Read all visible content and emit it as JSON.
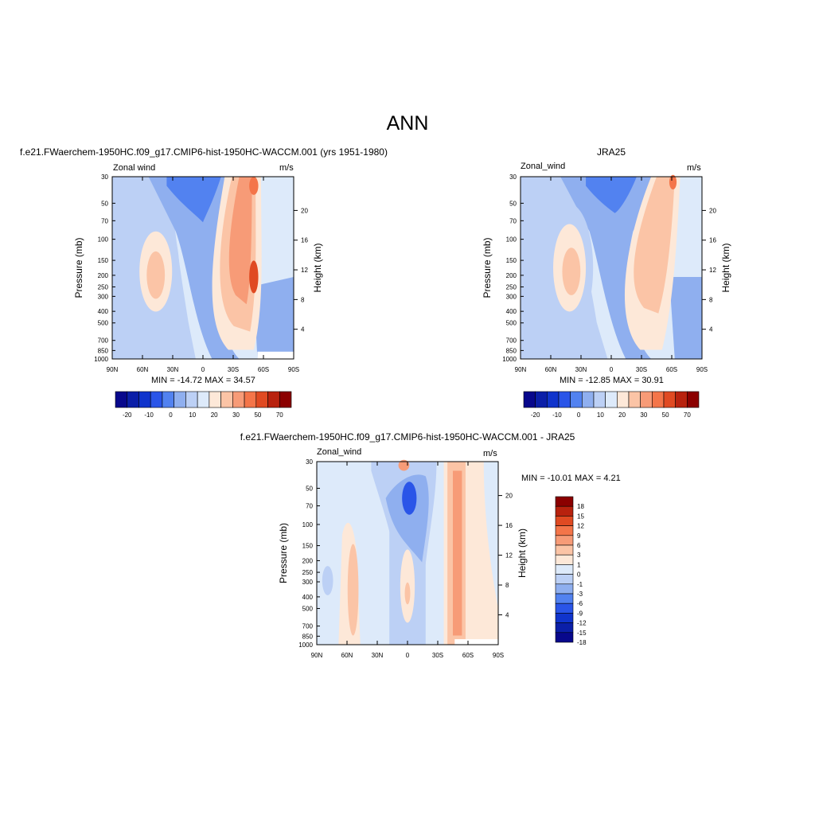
{
  "main_title": "ANN",
  "colors": {
    "div13": [
      "#08088c",
      "#0b1fa8",
      "#1034cc",
      "#2a55e8",
      "#5282f0",
      "#8fafef",
      "#bcd0f5",
      "#ddeafa",
      "#fde8d8",
      "#fbc4a6",
      "#f79b77",
      "#f47549",
      "#e04a22",
      "#b8220e",
      "#8b0000"
    ],
    "div18": [
      "#08088c",
      "#0b1fa8",
      "#1034cc",
      "#2a55e8",
      "#5282f0",
      "#8fafef",
      "#bcd0f5",
      "#ddeafa",
      "#fde8d8",
      "#fbc4a6",
      "#f79b77",
      "#f47549",
      "#e04a22",
      "#b8220e",
      "#8b0000"
    ]
  },
  "chart_data": [
    {
      "type": "heatmap",
      "title": "f.e21.FWaerchem-1950HC.f09_g17.CMIP6-hist-1950HC-WACCM.001 (yrs 1951-1980)",
      "left_string": "Zonal wind",
      "right_string": "m/s",
      "xlabel": "",
      "ylabel": "Pressure (mb)",
      "ylabel_right": "Height (km)",
      "x_ticks": [
        "90N",
        "60N",
        "30N",
        "0",
        "30S",
        "60S",
        "90S"
      ],
      "y_ticks": [
        "30",
        "50",
        "70",
        "100",
        "150",
        "200",
        "250",
        "300",
        "400",
        "500",
        "700",
        "850",
        "1000"
      ],
      "y_ticks_right": [
        "20",
        "16",
        "12",
        "8",
        "4"
      ],
      "stats": "MIN = -14.72  MAX =  34.57",
      "colorbar_labels": [
        "-20",
        "-10",
        "0",
        "10",
        "20",
        "30",
        "50",
        "70"
      ],
      "min": -14.72,
      "max": 34.57
    },
    {
      "type": "heatmap",
      "title": "JRA25",
      "left_string": "Zonal_wind",
      "right_string": "m/s",
      "xlabel": "",
      "ylabel": "Pressure (mb)",
      "ylabel_right": "Height (km)",
      "x_ticks": [
        "90N",
        "60N",
        "30N",
        "0",
        "30S",
        "60S",
        "90S"
      ],
      "y_ticks": [
        "30",
        "50",
        "70",
        "100",
        "150",
        "200",
        "250",
        "300",
        "400",
        "500",
        "700",
        "850",
        "1000"
      ],
      "y_ticks_right": [
        "20",
        "16",
        "12",
        "8",
        "4"
      ],
      "stats": "MIN = -12.85  MAX =  30.91",
      "colorbar_labels": [
        "-20",
        "-10",
        "0",
        "10",
        "20",
        "30",
        "50",
        "70"
      ],
      "min": -12.85,
      "max": 30.91
    },
    {
      "type": "heatmap",
      "title": "f.e21.FWaerchem-1950HC.f09_g17.CMIP6-hist-1950HC-WACCM.001 - JRA25",
      "left_string": "Zonal_wind",
      "right_string": "m/s",
      "xlabel": "",
      "ylabel": "Pressure (mb)",
      "ylabel_right": "Height (km)",
      "x_ticks": [
        "90N",
        "60N",
        "30N",
        "0",
        "30S",
        "60S",
        "90S"
      ],
      "y_ticks": [
        "30",
        "50",
        "70",
        "100",
        "150",
        "200",
        "250",
        "300",
        "400",
        "500",
        "700",
        "850",
        "1000"
      ],
      "y_ticks_right": [
        "20",
        "16",
        "12",
        "8",
        "4"
      ],
      "stats": "MIN = -10.01  MAX =   4.21",
      "colorbar_labels": [
        "18",
        "15",
        "12",
        "9",
        "6",
        "3",
        "1",
        "0",
        "-1",
        "-3",
        "-6",
        "-9",
        "-12",
        "-15",
        "-18"
      ],
      "min": -10.01,
      "max": 4.21
    }
  ]
}
